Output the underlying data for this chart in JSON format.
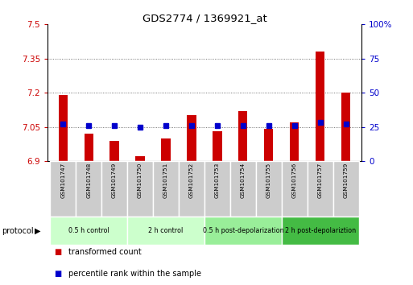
{
  "title": "GDS2774 / 1369921_at",
  "samples": [
    "GSM101747",
    "GSM101748",
    "GSM101749",
    "GSM101750",
    "GSM101751",
    "GSM101752",
    "GSM101753",
    "GSM101754",
    "GSM101755",
    "GSM101756",
    "GSM101757",
    "GSM101759"
  ],
  "red_values": [
    7.19,
    7.02,
    6.99,
    6.92,
    7.0,
    7.1,
    7.03,
    7.12,
    7.04,
    7.07,
    7.38,
    7.2
  ],
  "blue_values": [
    27,
    26,
    26,
    25,
    26,
    26,
    26,
    26,
    26,
    26,
    28,
    27
  ],
  "ymin": 6.9,
  "ymax": 7.5,
  "y2min": 0,
  "y2max": 100,
  "yticks": [
    6.9,
    7.05,
    7.2,
    7.35,
    7.5
  ],
  "y2ticks": [
    0,
    25,
    50,
    75,
    100
  ],
  "ytick_labels": [
    "6.9",
    "7.05",
    "7.2",
    "7.35",
    "7.5"
  ],
  "y2tick_labels": [
    "0",
    "25",
    "50",
    "75",
    "100%"
  ],
  "red_color": "#cc0000",
  "blue_color": "#0000cc",
  "groups": [
    {
      "label": "0.5 h control",
      "start": 0,
      "end": 3,
      "color": "#ccffcc"
    },
    {
      "label": "2 h control",
      "start": 3,
      "end": 6,
      "color": "#ccffcc"
    },
    {
      "label": "0.5 h post-depolarization",
      "start": 6,
      "end": 9,
      "color": "#99ee99"
    },
    {
      "label": "2 h post-depolariztion",
      "start": 9,
      "end": 12,
      "color": "#44bb44"
    }
  ],
  "sample_box_color": "#cccccc",
  "dotted_line_color": "#555555",
  "legend_items": [
    {
      "label": "transformed count",
      "color": "#cc0000"
    },
    {
      "label": "percentile rank within the sample",
      "color": "#0000cc"
    }
  ]
}
